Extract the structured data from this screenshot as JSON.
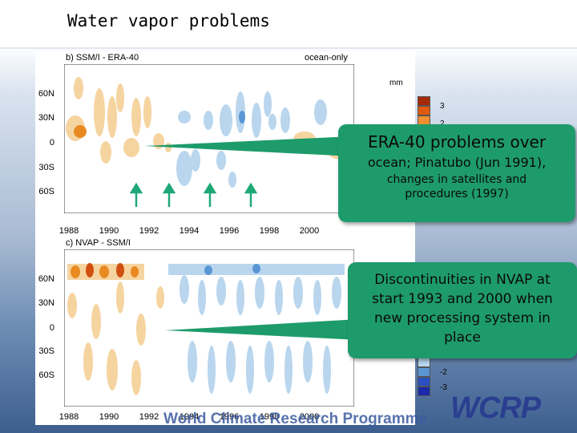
{
  "title": "Water vapor problems",
  "panel_b": {
    "label": "b) SSM/I - ERA-40",
    "tag": "ocean-only",
    "units": "mm",
    "lat_labels": [
      "60N",
      "30N",
      "0",
      "30S",
      "60S"
    ],
    "year_labels": [
      "1988",
      "1990",
      "1992",
      "1994",
      "1996",
      "1998",
      "2000"
    ],
    "colorbar_labels": [
      "3",
      "2"
    ]
  },
  "panel_c": {
    "label": "c) NVAP - SSM/I",
    "lat_labels": [
      "60N",
      "30N",
      "0",
      "30S",
      "60S"
    ],
    "year_labels": [
      "1988",
      "1990",
      "1992",
      "1994",
      "1996",
      "1998",
      "2000"
    ],
    "colorbar_labels": [
      "-2",
      "-3"
    ]
  },
  "callout_era40": {
    "line1": "ERA-40 problems over",
    "line2": "ocean; Pinatubo (Jun 1991),",
    "line3": "changes in satellites and procedures (1997)"
  },
  "callout_nvap": {
    "text": "Discontinuities in NVAP at start 1993 and 2000 when new processing system in place"
  },
  "watermark": "World Climate Research Programme",
  "logo": "WCRP",
  "colors": {
    "callout": "#1e9b6b",
    "arrow": "#1fa877",
    "positive_dark": "#a52a0a",
    "positive_mid": "#e88a20",
    "positive_light": "#f5d4a0",
    "negative_light": "#b9d6ee",
    "negative_mid": "#5a96d4",
    "negative_dark": "#1a2aa8"
  }
}
